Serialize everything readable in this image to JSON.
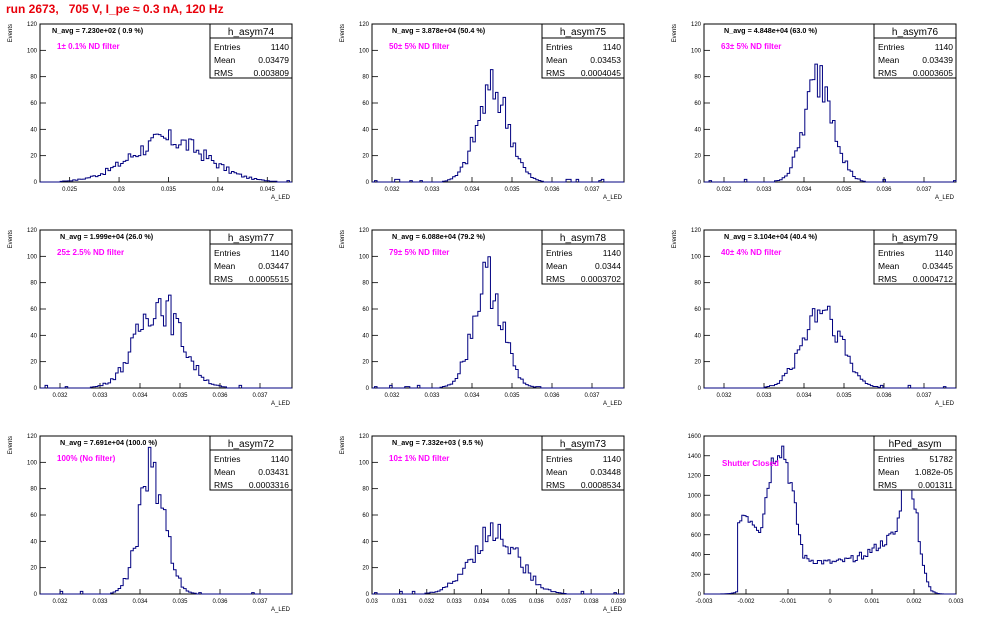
{
  "page": {
    "title": "run 2673,   705 V, I_pe ≈ 0.3 nA, 120 Hz",
    "title_color": "#e8000b"
  },
  "colors": {
    "histogram": "#000080",
    "annotation": "#ff00ff",
    "frame": "#000000"
  },
  "chart_data": [
    {
      "type": "bar",
      "name": "h_asym74",
      "stats": {
        "entries": "1140",
        "mean": "0.03479",
        "rms": "0.003809"
      },
      "navg": "N_avg = 7.230e+02 ( 0.9 %)",
      "filter": "1± 0.1% ND filter",
      "xlabel": "A_LED",
      "ylabel": "Events",
      "xlim": [
        0.022,
        0.0475
      ],
      "ylim": [
        0,
        120
      ],
      "xticks": [
        "0.025",
        "0.03",
        "0.035",
        "0.04",
        "0.045"
      ],
      "xtick_values": [
        0.025,
        0.03,
        0.035,
        0.04,
        0.045
      ],
      "yticks": [
        0,
        20,
        40,
        60,
        80,
        100,
        120
      ],
      "shape": {
        "kind": "broad",
        "center": 0.035,
        "sigma": 0.0038,
        "peak": 32
      }
    },
    {
      "type": "bar",
      "name": "h_asym75",
      "stats": {
        "entries": "1140",
        "mean": "0.03453",
        "rms": "0.0004045"
      },
      "navg": "N_avg = 3.878e+04 (50.4 %)",
      "filter": "50± 5% ND filter",
      "xlabel": "A_LED",
      "ylabel": "Events",
      "xlim": [
        0.0315,
        0.0378
      ],
      "ylim": [
        0,
        120
      ],
      "xticks": [
        "0.032",
        "0.033",
        "0.034",
        "0.035",
        "0.036",
        "0.037"
      ],
      "xtick_values": [
        0.032,
        0.033,
        0.034,
        0.035,
        0.036,
        0.037
      ],
      "yticks": [
        0,
        20,
        40,
        60,
        80,
        100,
        120
      ],
      "shape": {
        "kind": "gauss",
        "center": 0.03453,
        "sigma": 0.0004,
        "peak": 70
      }
    },
    {
      "type": "bar",
      "name": "h_asym76",
      "stats": {
        "entries": "1140",
        "mean": "0.03439",
        "rms": "0.0003605"
      },
      "navg": "N_avg = 4.848e+04 (63.0 %)",
      "filter": "63± 5% ND filter",
      "xlabel": "A_LED",
      "ylabel": "Events",
      "xlim": [
        0.0315,
        0.0378
      ],
      "ylim": [
        0,
        120
      ],
      "xticks": [
        "0.032",
        "0.033",
        "0.034",
        "0.035",
        "0.036",
        "0.037"
      ],
      "xtick_values": [
        0.032,
        0.033,
        0.034,
        0.035,
        0.036,
        0.037
      ],
      "yticks": [
        0,
        20,
        40,
        60,
        80,
        100,
        120
      ],
      "shape": {
        "kind": "gauss",
        "center": 0.03439,
        "sigma": 0.00036,
        "peak": 80
      }
    },
    {
      "type": "bar",
      "name": "h_asym77",
      "stats": {
        "entries": "1140",
        "mean": "0.03447",
        "rms": "0.0005515"
      },
      "navg": "N_avg = 1.999e+04 (26.0 %)",
      "filter": "25± 2.5% ND filter",
      "xlabel": "A_LED",
      "ylabel": "Events",
      "xlim": [
        0.0315,
        0.0378
      ],
      "ylim": [
        0,
        120
      ],
      "xticks": [
        "0.032",
        "0.033",
        "0.034",
        "0.035",
        "0.036",
        "0.037"
      ],
      "xtick_values": [
        0.032,
        0.033,
        0.034,
        0.035,
        0.036,
        0.037
      ],
      "yticks": [
        0,
        20,
        40,
        60,
        80,
        100,
        120
      ],
      "shape": {
        "kind": "gauss",
        "center": 0.03447,
        "sigma": 0.00055,
        "peak": 65
      }
    },
    {
      "type": "bar",
      "name": "h_asym78",
      "stats": {
        "entries": "1140",
        "mean": "0.0344",
        "rms": "0.0003702"
      },
      "navg": "N_avg = 6.088e+04 (79.2 %)",
      "filter": "79± 5% ND filter",
      "xlabel": "A_LED",
      "ylabel": "Events",
      "xlim": [
        0.0315,
        0.0378
      ],
      "ylim": [
        0,
        120
      ],
      "xticks": [
        "0.032",
        "0.033",
        "0.034",
        "0.035",
        "0.036",
        "0.037"
      ],
      "xtick_values": [
        0.032,
        0.033,
        0.034,
        0.035,
        0.036,
        0.037
      ],
      "yticks": [
        0,
        20,
        40,
        60,
        80,
        100,
        120
      ],
      "shape": {
        "kind": "gauss",
        "center": 0.0344,
        "sigma": 0.00037,
        "peak": 82
      }
    },
    {
      "type": "bar",
      "name": "h_asym79",
      "stats": {
        "entries": "1140",
        "mean": "0.03445",
        "rms": "0.0004712"
      },
      "navg": "N_avg = 3.104e+04 (40.4 %)",
      "filter": "40± 4% ND filter",
      "xlabel": "A_LED",
      "ylabel": "Events",
      "xlim": [
        0.0315,
        0.0378
      ],
      "ylim": [
        0,
        120
      ],
      "xticks": [
        "0.032",
        "0.033",
        "0.034",
        "0.035",
        "0.036",
        "0.037"
      ],
      "xtick_values": [
        0.032,
        0.033,
        0.034,
        0.035,
        0.036,
        0.037
      ],
      "yticks": [
        0,
        20,
        40,
        60,
        80,
        100,
        120
      ],
      "shape": {
        "kind": "gauss",
        "center": 0.03445,
        "sigma": 0.00047,
        "peak": 62
      }
    },
    {
      "type": "bar",
      "name": "h_asym72",
      "stats": {
        "entries": "1140",
        "mean": "0.03431",
        "rms": "0.0003316"
      },
      "navg": "N_avg = 7.691e+04 (100.0 %)",
      "filter": "100% (No filter)",
      "xlabel": "A_LED",
      "ylabel": "Events",
      "xlim": [
        0.0315,
        0.0378
      ],
      "ylim": [
        0,
        120
      ],
      "xticks": [
        "0.032",
        "0.033",
        "0.034",
        "0.035",
        "0.036",
        "0.037"
      ],
      "xtick_values": [
        0.032,
        0.033,
        0.034,
        0.035,
        0.036,
        0.037
      ],
      "yticks": [
        0,
        20,
        40,
        60,
        80,
        100,
        120
      ],
      "shape": {
        "kind": "gauss",
        "center": 0.03431,
        "sigma": 0.00033,
        "peak": 92
      }
    },
    {
      "type": "bar",
      "name": "h_asym73",
      "stats": {
        "entries": "1140",
        "mean": "0.03448",
        "rms": "0.0008534"
      },
      "navg": "N_avg = 7.332e+03 ( 9.5 %)",
      "filter": "10± 1% ND filter",
      "xlabel": "A_LED",
      "ylabel": "Events",
      "xlim": [
        0.03,
        0.0392
      ],
      "ylim": [
        0,
        120
      ],
      "xticks": [
        "0.03",
        "0.031",
        "0.032",
        "0.033",
        "0.034",
        "0.035",
        "0.036",
        "0.037",
        "0.038",
        "0.039"
      ],
      "xtick_values": [
        0.03,
        0.031,
        0.032,
        0.033,
        0.034,
        0.035,
        0.036,
        0.037,
        0.038,
        0.039
      ],
      "yticks": [
        0,
        20,
        40,
        60,
        80,
        100,
        120
      ],
      "shape": {
        "kind": "gauss",
        "center": 0.03448,
        "sigma": 0.00085,
        "peak": 47
      }
    },
    {
      "type": "bar",
      "name": "hPed_asym",
      "stats": {
        "entries": "51782",
        "mean": "1.082e-05",
        "rms": "0.001311"
      },
      "navg": "",
      "filter": "Shutter Closed",
      "xlabel": "",
      "ylabel": "",
      "xlim": [
        -0.003,
        0.003
      ],
      "ylim": [
        0,
        1600
      ],
      "xticks": [
        "-0.003",
        "-0.002",
        "-0.001",
        "0",
        "0.001",
        "0.002",
        "0.003"
      ],
      "xtick_values": [
        -0.003,
        -0.002,
        -0.001,
        0,
        0.001,
        0.002,
        0.003
      ],
      "yticks": [
        0,
        200,
        400,
        600,
        800,
        1000,
        1200,
        1400,
        1600
      ],
      "shape": {
        "kind": "double",
        "peak": 1550
      }
    }
  ]
}
